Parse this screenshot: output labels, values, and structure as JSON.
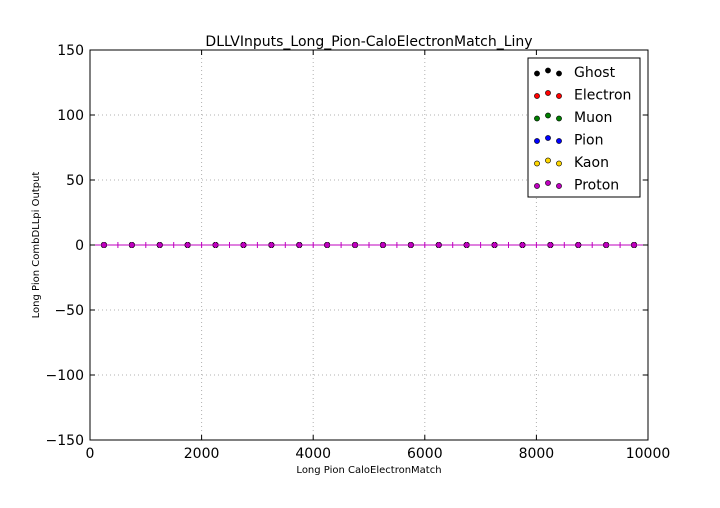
{
  "chart_data": {
    "type": "scatter",
    "title": "DLLVInputs_Long_Pion-CaloElectronMatch_Liny",
    "xlabel": "Long Pion CaloElectronMatch",
    "ylabel": "Long Pion CombDLLpi Output",
    "xlim": [
      0,
      10000
    ],
    "ylim": [
      -150,
      150
    ],
    "xticks": [
      0,
      2000,
      4000,
      6000,
      8000,
      10000
    ],
    "yticks": [
      150,
      100,
      50,
      0,
      -50,
      -100,
      -150
    ],
    "xtick_labels": [
      "0",
      "2000",
      "4000",
      "6000",
      "8000",
      "10000"
    ],
    "ytick_labels": [
      "150",
      "100",
      "50",
      "0",
      "−50",
      "−100",
      "−150"
    ],
    "grid": true,
    "legend_position": "top-right",
    "x": [
      250,
      750,
      1250,
      1750,
      2250,
      2750,
      3250,
      3750,
      4250,
      4750,
      5250,
      5750,
      6250,
      6750,
      7250,
      7750,
      8250,
      8750,
      9250,
      9750
    ],
    "series": [
      {
        "name": "Ghost",
        "color": "#000000",
        "y": [
          0,
          0,
          0,
          0,
          0,
          0,
          0,
          0,
          0,
          0,
          0,
          0,
          0,
          0,
          0,
          0,
          0,
          0,
          0,
          0
        ]
      },
      {
        "name": "Electron",
        "color": "#ff0000",
        "y": [
          0,
          0,
          0,
          0,
          0,
          0,
          0,
          0,
          0,
          0,
          0,
          0,
          0,
          0,
          0,
          0,
          0,
          0,
          0,
          0
        ]
      },
      {
        "name": "Muon",
        "color": "#008000",
        "y": [
          0,
          0,
          0,
          0,
          0,
          0,
          0,
          0,
          0,
          0,
          0,
          0,
          0,
          0,
          0,
          0,
          0,
          0,
          0,
          0
        ]
      },
      {
        "name": "Pion",
        "color": "#0000ff",
        "y": [
          0,
          0,
          0,
          0,
          0,
          0,
          0,
          0,
          0,
          0,
          0,
          0,
          0,
          0,
          0,
          0,
          0,
          0,
          0,
          0
        ]
      },
      {
        "name": "Kaon",
        "color": "#ffd700",
        "y": [
          0,
          0,
          0,
          0,
          0,
          0,
          0,
          0,
          0,
          0,
          0,
          0,
          0,
          0,
          0,
          0,
          0,
          0,
          0,
          0
        ]
      },
      {
        "name": "Proton",
        "color": "#bf00bf",
        "y": [
          0,
          0,
          0,
          0,
          0,
          0,
          0,
          0,
          0,
          0,
          0,
          0,
          0,
          0,
          0,
          0,
          0,
          0,
          0,
          0
        ]
      }
    ]
  }
}
